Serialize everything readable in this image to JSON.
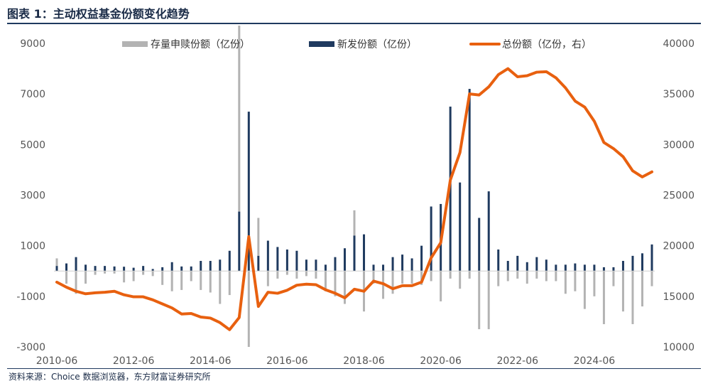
{
  "header": {
    "title": "图表 1：主动权益基金份额变化趋势"
  },
  "footer": {
    "source": "资料来源：Choice 数据浏览器，东方财富证券研究所"
  },
  "colors": {
    "existing": "#b3b3b3",
    "new": "#1f3a5f",
    "total": "#e8600f"
  },
  "chart_data": {
    "type": "bar+line",
    "x_tick_labels": [
      "2010-06",
      "2012-06",
      "2014-06",
      "2016-06",
      "2018-06",
      "2020-06",
      "2022-06",
      "2024-06"
    ],
    "left_axis": {
      "ylim": [
        -3000,
        9000
      ],
      "ticks": [
        -3000,
        -1000,
        1000,
        3000,
        5000,
        7000,
        9000
      ]
    },
    "right_axis": {
      "ylim": [
        10000,
        40000
      ],
      "ticks": [
        10000,
        15000,
        20000,
        25000,
        30000,
        35000,
        40000
      ]
    },
    "legend": [
      "存量申赎份额（亿份）",
      "新发份额（亿份）",
      "总份额（亿份，右）"
    ],
    "x": [
      "2010-06",
      "2010-09",
      "2010-12",
      "2011-03",
      "2011-06",
      "2011-09",
      "2011-12",
      "2012-03",
      "2012-06",
      "2012-09",
      "2012-12",
      "2013-03",
      "2013-06",
      "2013-09",
      "2013-12",
      "2014-03",
      "2014-06",
      "2014-09",
      "2014-12",
      "2015-03",
      "2015-06",
      "2015-09",
      "2015-12",
      "2016-03",
      "2016-06",
      "2016-09",
      "2016-12",
      "2017-03",
      "2017-06",
      "2017-09",
      "2017-12",
      "2018-03",
      "2018-06",
      "2018-09",
      "2018-12",
      "2019-03",
      "2019-06",
      "2019-09",
      "2019-12",
      "2020-03",
      "2020-06",
      "2020-09",
      "2020-12",
      "2021-03",
      "2021-06",
      "2021-09",
      "2021-12",
      "2022-03",
      "2022-06",
      "2022-09",
      "2022-12",
      "2023-03",
      "2023-06",
      "2023-09",
      "2023-12",
      "2024-03",
      "2024-06",
      "2024-09",
      "2024-12",
      "2025-03",
      "2025-06",
      "2025-09",
      "2025-12"
    ],
    "series": [
      {
        "name": "存量申赎份额（亿份）",
        "type": "bar",
        "axis": "left",
        "values": [
          300,
          -500,
          -900,
          -500,
          -150,
          -100,
          -100,
          -450,
          -400,
          -150,
          -200,
          -550,
          -800,
          -750,
          -400,
          -750,
          -850,
          -1300,
          -950,
          8000,
          -3000,
          1500,
          -600,
          -300,
          -150,
          -300,
          -200,
          -300,
          -800,
          -1000,
          -1300,
          1000,
          -1600,
          -500,
          -1100,
          -900,
          -500,
          -500,
          -550,
          -400,
          -1200,
          -300,
          -700,
          -300,
          -2300,
          -2300,
          -600,
          -400,
          -300,
          -500,
          -300,
          -400,
          -400,
          -900,
          -800,
          -1500,
          -1000,
          -2100,
          -600,
          -1600,
          -2100,
          -1400,
          -600
        ]
      },
      {
        "name": "新发份额（亿份）",
        "type": "bar",
        "axis": "left",
        "values": [
          200,
          300,
          550,
          250,
          200,
          200,
          180,
          170,
          130,
          200,
          80,
          150,
          350,
          180,
          180,
          400,
          400,
          450,
          800,
          2350,
          6300,
          600,
          1200,
          950,
          850,
          800,
          450,
          450,
          250,
          550,
          900,
          1400,
          1450,
          250,
          250,
          550,
          650,
          500,
          1000,
          2550,
          2650,
          6500,
          3500,
          7200,
          2100,
          3150,
          850,
          400,
          600,
          350,
          550,
          450,
          250,
          250,
          300,
          250,
          250,
          150,
          150,
          400,
          600,
          700,
          1050
        ]
      },
      {
        "name": "总份额（亿份，右）",
        "type": "line",
        "axis": "right",
        "values": [
          16400,
          15900,
          15500,
          15250,
          15350,
          15400,
          15500,
          15150,
          14950,
          14950,
          14650,
          14250,
          13850,
          13250,
          13300,
          12950,
          12850,
          12400,
          11700,
          12900,
          20900,
          14000,
          15400,
          15300,
          15600,
          16100,
          16200,
          16150,
          15650,
          15300,
          14850,
          15700,
          15500,
          16500,
          16250,
          15750,
          16050,
          16050,
          16400,
          18800,
          20300,
          26500,
          29200,
          35000,
          34900,
          35700,
          36900,
          37500,
          36700,
          36800,
          37150,
          37200,
          36600,
          35600,
          34300,
          33700,
          32300,
          30200,
          29600,
          28800,
          27400,
          26800,
          27300
        ]
      }
    ]
  }
}
